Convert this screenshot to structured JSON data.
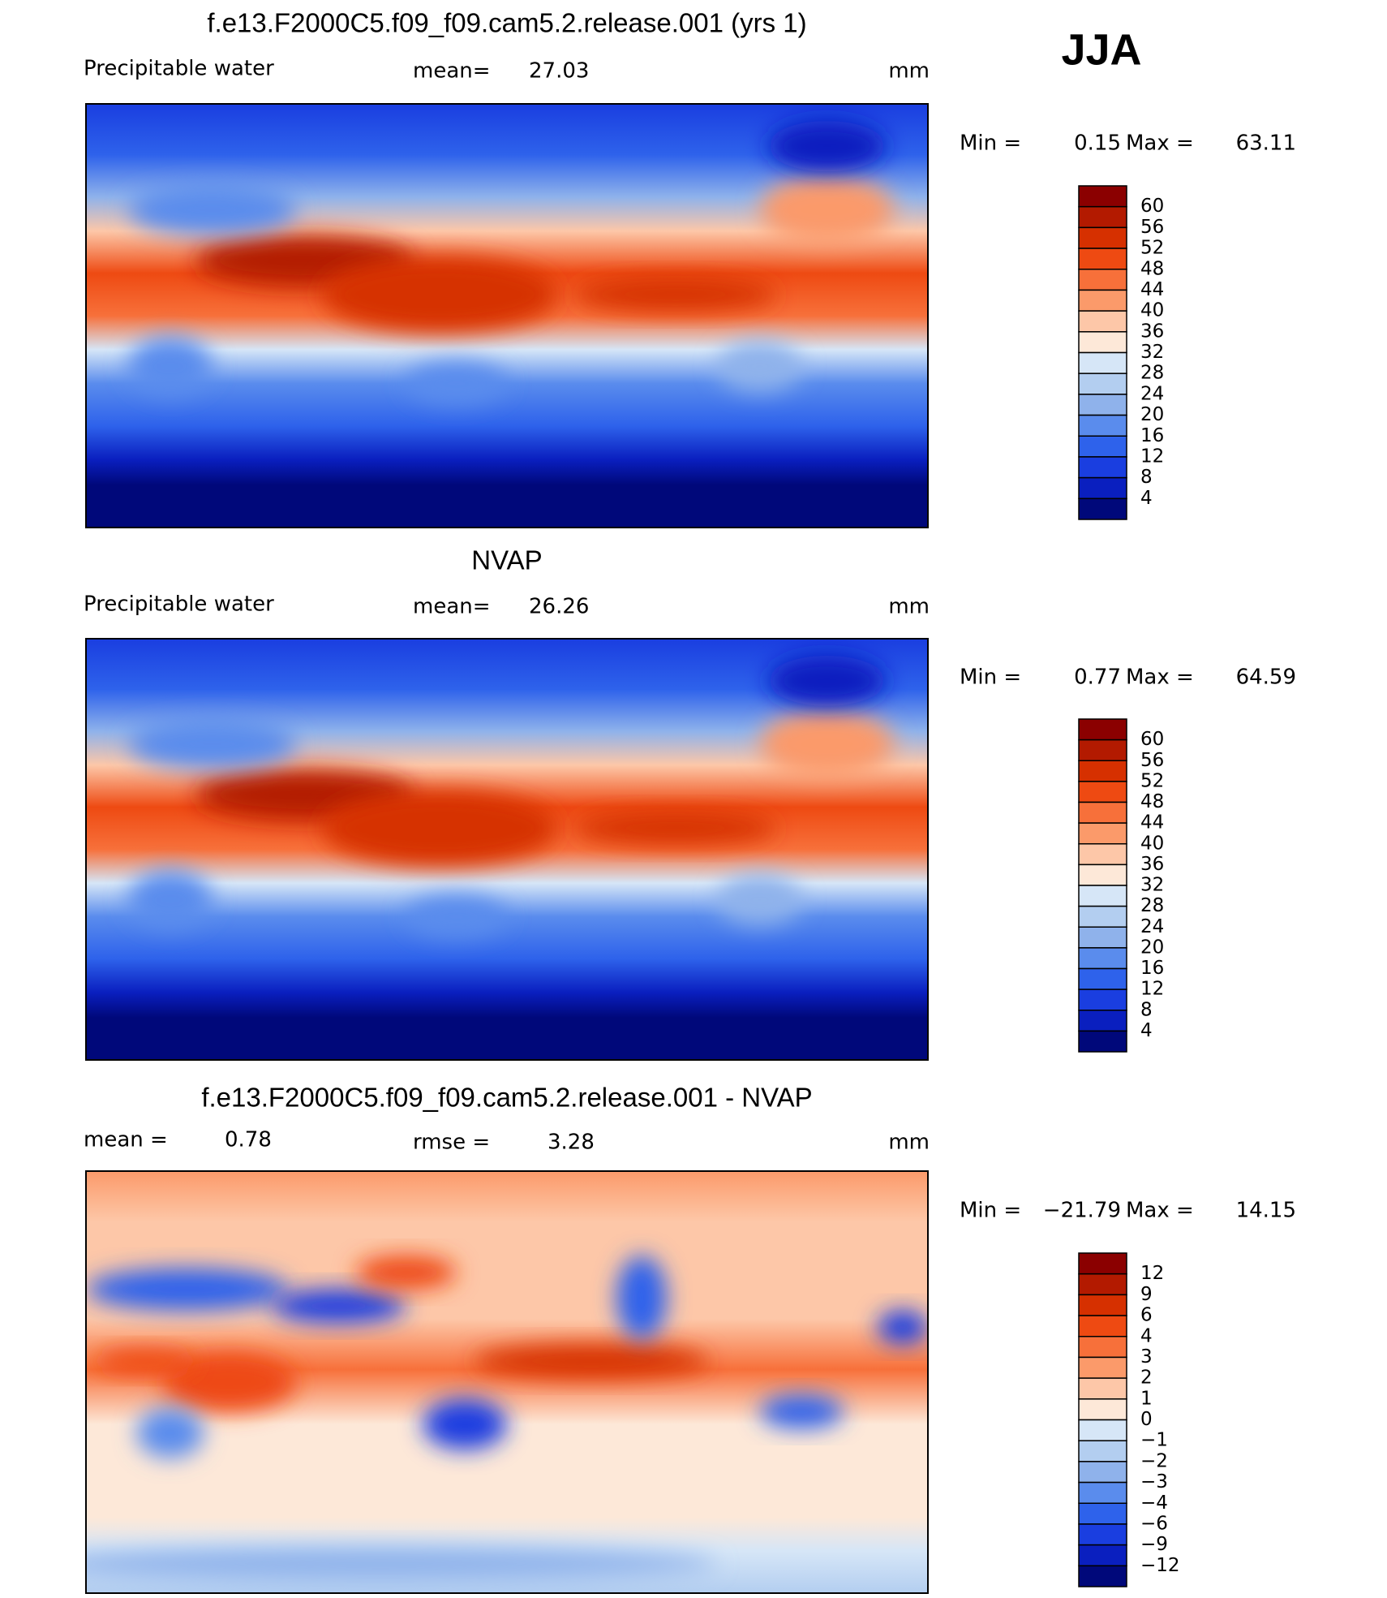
{
  "header": {
    "season": "JJA"
  },
  "panels": [
    {
      "title": "f.e13.F2000C5.f09_f09.cam5.2.release.001 (yrs 1)",
      "subtitle_left": "Precipitable water",
      "stat_label": "mean=",
      "stat_value": "27.03",
      "units": "mm",
      "min_label": "Min =",
      "min_value": "0.15",
      "max_label": "Max =",
      "max_value": "63.11",
      "map": "field",
      "colorbar": {
        "labels": [
          "60",
          "56",
          "52",
          "48",
          "44",
          "40",
          "36",
          "32",
          "28",
          "24",
          "20",
          "16",
          "12",
          "8",
          "4"
        ],
        "colors": [
          "#8b0000",
          "#b31a00",
          "#d63000",
          "#ee4a12",
          "#f7703a",
          "#fb9a6a",
          "#fdc7a8",
          "#fde8d8",
          "#d6e6f7",
          "#b3cef0",
          "#8fb2eb",
          "#5a8ced",
          "#2e62eb",
          "#1a3ee0",
          "#0a1fbf",
          "#00087a"
        ]
      }
    },
    {
      "title": "NVAP",
      "subtitle_left": "Precipitable water",
      "stat_label": "mean=",
      "stat_value": "26.26",
      "units": "mm",
      "min_label": "Min =",
      "min_value": "0.77",
      "max_label": "Max =",
      "max_value": "64.59",
      "map": "field",
      "colorbar": {
        "labels": [
          "60",
          "56",
          "52",
          "48",
          "44",
          "40",
          "36",
          "32",
          "28",
          "24",
          "20",
          "16",
          "12",
          "8",
          "4"
        ],
        "colors": [
          "#8b0000",
          "#b31a00",
          "#d63000",
          "#ee4a12",
          "#f7703a",
          "#fb9a6a",
          "#fdc7a8",
          "#fde8d8",
          "#d6e6f7",
          "#b3cef0",
          "#8fb2eb",
          "#5a8ced",
          "#2e62eb",
          "#1a3ee0",
          "#0a1fbf",
          "#00087a"
        ]
      }
    },
    {
      "title": "f.e13.F2000C5.f09_f09.cam5.2.release.001 - NVAP",
      "subtitle_left": "mean =",
      "subtitle_left_value": "0.78",
      "stat_label": "rmse =",
      "stat_value": "3.28",
      "units": "mm",
      "min_label": "Min =",
      "min_value": "−21.79",
      "max_label": "Max =",
      "max_value": "14.15",
      "map": "diff",
      "colorbar": {
        "labels": [
          "12",
          "9",
          "6",
          "4",
          "3",
          "2",
          "1",
          "0",
          "−1",
          "−2",
          "−3",
          "−4",
          "−6",
          "−9",
          "−12"
        ],
        "colors": [
          "#8b0000",
          "#b31a00",
          "#d63000",
          "#ee4a12",
          "#f7703a",
          "#fb9a6a",
          "#fdc7a8",
          "#fde8d8",
          "#d6e6f7",
          "#b3cef0",
          "#8fb2eb",
          "#5a8ced",
          "#2e62eb",
          "#1a3ee0",
          "#0a1fbf",
          "#00087a"
        ]
      }
    }
  ]
}
